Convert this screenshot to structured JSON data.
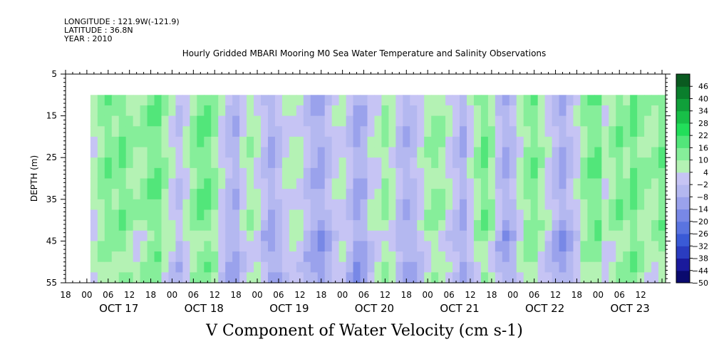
{
  "header": {
    "longitude": "LONGITUDE : 121.9W(-121.9)",
    "latitude": "LATITUDE : 36.8N",
    "year": "YEAR : 2010"
  },
  "chart_data": {
    "type": "heatmap",
    "title": "Hourly Gridded MBARI Mooring M0 Sea Water Temperature and Salinity Observations",
    "caption": "V Component of Water Velocity (cm s-1)",
    "ylabel": "DEPTH (m)",
    "ylim": [
      55,
      5
    ],
    "y_ticks": [
      5,
      15,
      25,
      35,
      45,
      55
    ],
    "data_depth_range": [
      10,
      55
    ],
    "x_hour_labels": [
      "00",
      "06",
      "12",
      "18"
    ],
    "x_day_labels": [
      "OCT 17",
      "OCT 18",
      "OCT 19",
      "OCT 20",
      "OCT 21",
      "OCT 22",
      "OCT 23"
    ],
    "x_start_hour_offset": -6,
    "data_start_hour_offset": 1,
    "x_end_hour_offset": 163,
    "colorbar": {
      "levels": [
        -50,
        -44,
        -38,
        -32,
        -26,
        -20,
        -14,
        -8,
        -2,
        4,
        10,
        16,
        22,
        28,
        34,
        40,
        46
      ],
      "colors": [
        "#0a0a6e",
        "#1a1a9c",
        "#2a3cc0",
        "#3a5ad6",
        "#5a74e0",
        "#7888e6",
        "#9aa2ec",
        "#b4b8f0",
        "#c6c4f4",
        "#b4f2b4",
        "#86ee9a",
        "#52e67a",
        "#22de5a",
        "#18c048",
        "#10a03a",
        "#0a7e2c",
        "#0a5a20"
      ]
    },
    "pattern_column_values_cm_s": [
      6,
      10,
      14,
      12,
      16,
      12,
      8,
      10,
      14,
      16,
      8,
      4,
      -2,
      6,
      12,
      14,
      16,
      10,
      2,
      -4,
      -6,
      2,
      8,
      6,
      -2,
      -8,
      -4,
      2,
      6,
      4,
      -2,
      -6,
      -10,
      -4,
      2,
      4,
      -2,
      -8,
      -6,
      2,
      6,
      10,
      6,
      -2,
      -6,
      -4,
      2,
      8,
      12,
      8,
      4,
      -2,
      -6,
      2,
      10,
      14,
      8,
      -2,
      -8,
      -4,
      6,
      12,
      14,
      8,
      2,
      -4,
      -8,
      -4,
      2,
      10,
      14,
      16
    ]
  }
}
